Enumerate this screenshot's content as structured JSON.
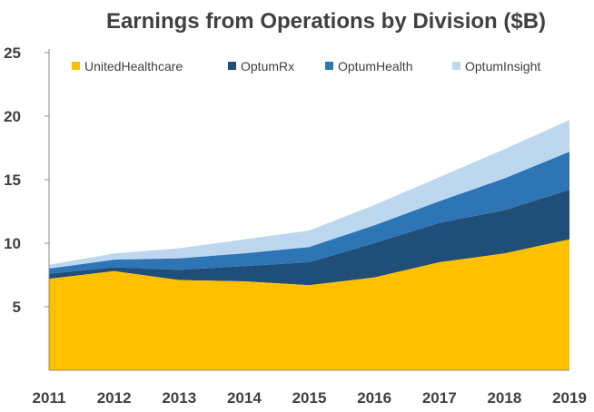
{
  "chart_data": {
    "type": "area",
    "stacked": true,
    "title": "Earnings from Operations by Division ($B)",
    "xlabel": "",
    "ylabel": "",
    "categories": [
      "2011",
      "2012",
      "2013",
      "2014",
      "2015",
      "2016",
      "2017",
      "2018",
      "2019"
    ],
    "ylim": [
      0,
      25
    ],
    "yticks": [
      5,
      10,
      15,
      20,
      25
    ],
    "grid": false,
    "legend_position": "top",
    "series": [
      {
        "name": "UnitedHealthcare",
        "color": "#FFC000",
        "values": [
          7.2,
          7.8,
          7.1,
          7.0,
          6.7,
          7.3,
          8.5,
          9.2,
          10.3
        ]
      },
      {
        "name": "OptumRx",
        "color": "#1F4E79",
        "values": [
          0.4,
          0.3,
          0.8,
          1.2,
          1.8,
          2.7,
          3.1,
          3.4,
          3.9
        ]
      },
      {
        "name": "OptumHealth",
        "color": "#2E75B6",
        "values": [
          0.4,
          0.6,
          0.9,
          1.0,
          1.2,
          1.4,
          1.7,
          2.5,
          3.0
        ]
      },
      {
        "name": "OptumInsight",
        "color": "#BDD7EE",
        "values": [
          0.3,
          0.5,
          0.8,
          1.1,
          1.3,
          1.6,
          1.9,
          2.3,
          2.5
        ]
      }
    ]
  }
}
